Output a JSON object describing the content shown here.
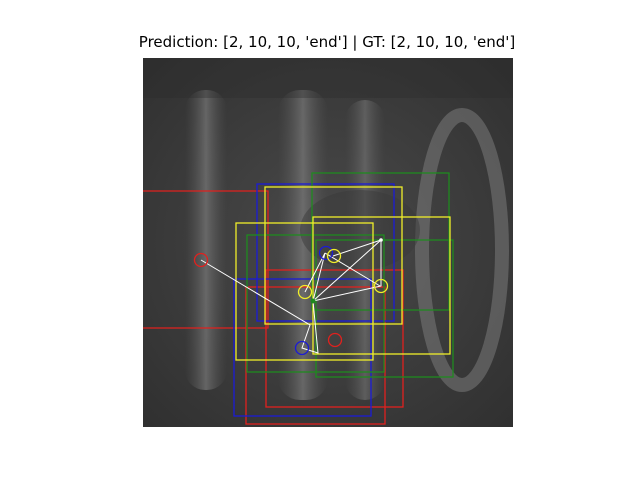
{
  "title": "Prediction: [2, 10, 10, 'end'] | GT: [2, 10, 10, 'end']",
  "colors": {
    "background": "#ffffff",
    "red": "#e0211e",
    "blue": "#1b1bd6",
    "green": "#1f8a1f",
    "yellow": "#f0ee2a",
    "path": "#ffffff"
  },
  "overlay": {
    "image": "grayscale-scan",
    "box_colors": [
      "red",
      "blue",
      "yellow",
      "green"
    ],
    "marker_colors": [
      "red",
      "blue",
      "yellow"
    ],
    "path_color": "white"
  }
}
